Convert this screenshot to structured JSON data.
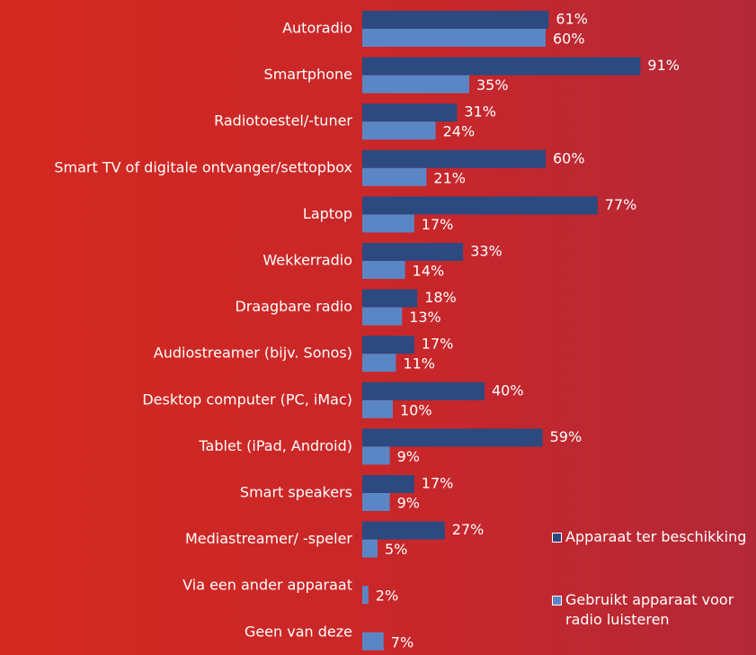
{
  "chart_data": {
    "type": "bar",
    "orientation": "horizontal",
    "categories": [
      "Autoradio",
      "Smartphone",
      "Radiotoestel/-tuner",
      "Smart TV of digitale ontvanger/settopbox",
      "Laptop",
      "Wekkerradio",
      "Draagbare radio",
      "Audiostreamer (bijv. Sonos)",
      "Desktop computer (PC, iMac)",
      "Tablet (iPad, Android)",
      "Smart speakers",
      "Mediastreamer/ -speler",
      "Via een ander apparaat",
      "Geen van deze"
    ],
    "series": [
      {
        "name": "Apparaat ter beschikking",
        "color": "#2c4a80",
        "values": [
          61,
          91,
          31,
          60,
          77,
          33,
          18,
          17,
          40,
          59,
          17,
          27,
          null,
          null
        ],
        "value_labels": [
          "61%",
          "91%",
          "31%",
          "60%",
          "77%",
          "33%",
          "18%",
          "17%",
          "40%",
          "59%",
          "17%",
          "27%",
          null,
          null
        ]
      },
      {
        "name": "Gebruikt apparaat voor radio luisteren",
        "color": "#5b86c6",
        "values": [
          60,
          35,
          24,
          21,
          17,
          14,
          13,
          11,
          10,
          9,
          9,
          5,
          2,
          7
        ],
        "value_labels": [
          "60%",
          "35%",
          "24%",
          "21%",
          "17%",
          "14%",
          "13%",
          "11%",
          "10%",
          "9%",
          "9%",
          "5%",
          "2%",
          "7%"
        ]
      }
    ],
    "xlim": [
      0,
      100
    ]
  }
}
